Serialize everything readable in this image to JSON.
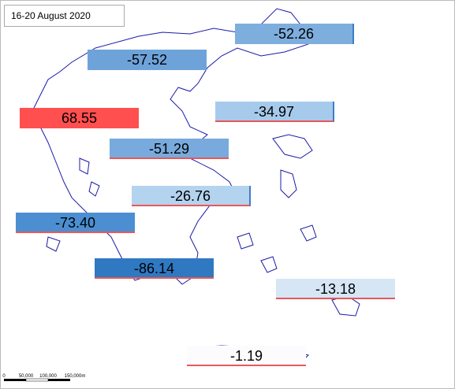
{
  "title": "16-20 August 2020",
  "regions": {
    "values": [
      -52.26,
      -57.52,
      68.55,
      -34.97,
      -51.29,
      -26.76,
      -73.4,
      -86.14,
      -13.18,
      -1.19
    ],
    "value_labels": [
      "-52.26",
      "-57.52",
      "68.55",
      "-34.97",
      "-51.29",
      "-26.76",
      "-73.40",
      "-86.14",
      "-13.18",
      "-1.19"
    ],
    "colors": [
      "#7eaedd",
      "#6ea3da",
      "#ff4f4f",
      "#a6caeb",
      "#78aadd",
      "#b4d3ee",
      "#4b8fd2",
      "#2f79c3",
      "#d6e6f5",
      "#fcfcfe"
    ]
  },
  "scale_bar": {
    "labels": [
      "0",
      "50,000",
      "100,000",
      "150,000m"
    ]
  }
}
